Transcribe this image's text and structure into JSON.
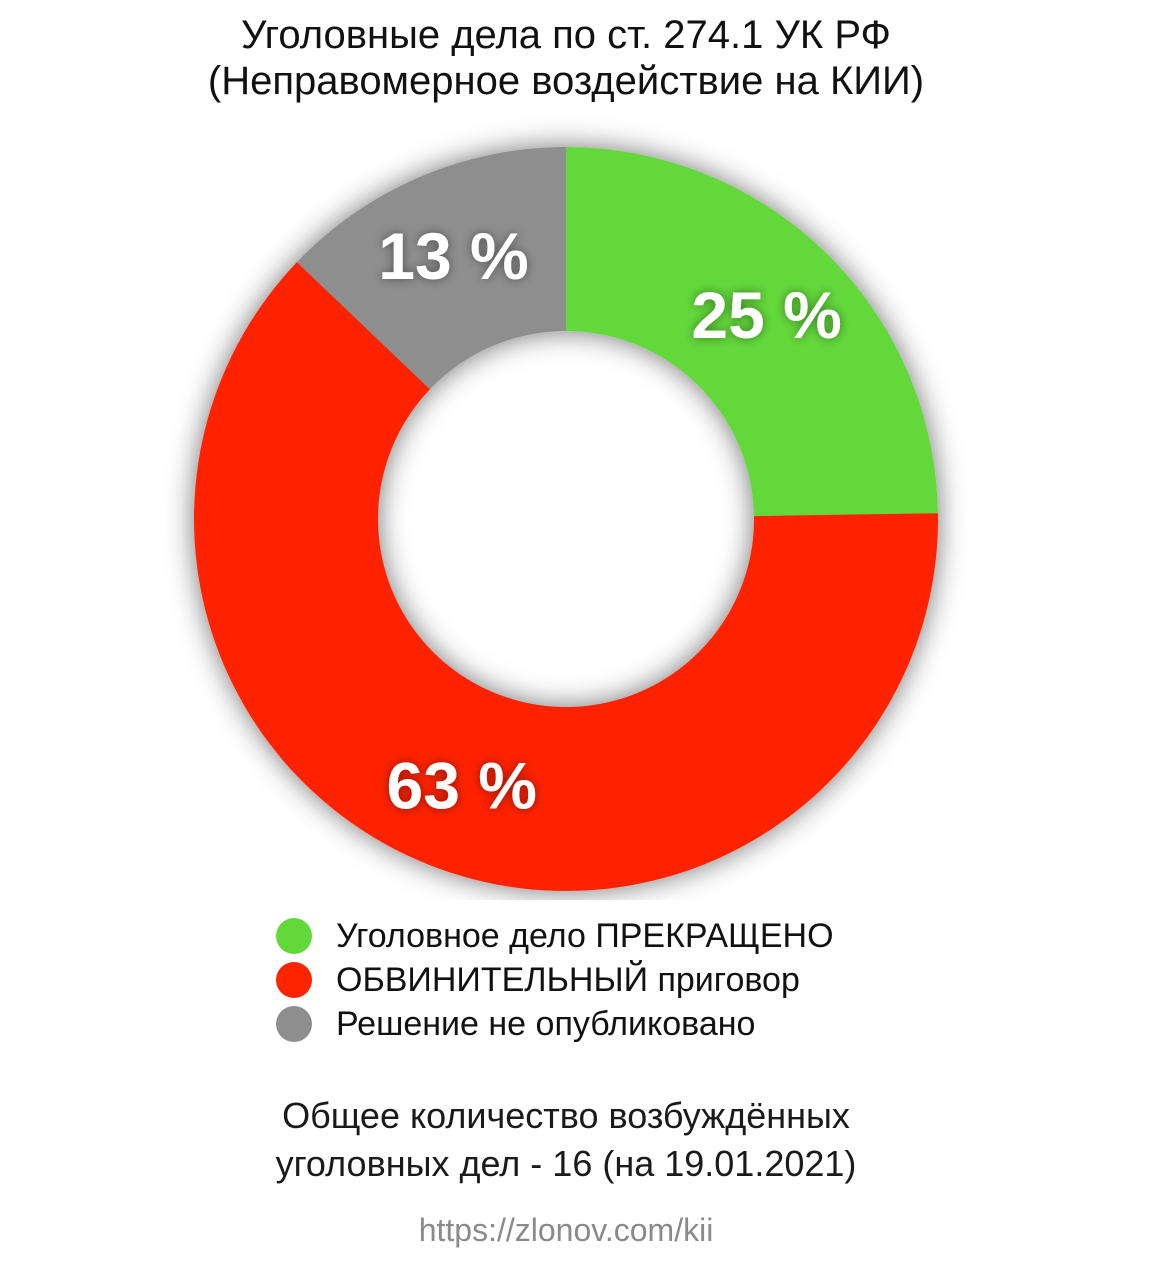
{
  "chart_data": {
    "type": "pie",
    "title": "Уголовные дела по ст. 274.1 УК РФ",
    "subtitle": "(Неправомерное воздействие на КИИ)",
    "slices": [
      {
        "name": "Уголовное дело ПРЕКРАЩЕНО",
        "value": 25,
        "label": "25 %",
        "color": "#63d83b"
      },
      {
        "name": "ОБВИНИТЕЛЬНЫЙ приговор",
        "value": 63,
        "label": "63 %",
        "color": "#ff2400"
      },
      {
        "name": "Решение не опубликовано",
        "value": 13,
        "label": "13 %",
        "color": "#8e8e8e"
      }
    ],
    "donut": true,
    "legend_position": "bottom"
  },
  "footnote": {
    "line1": "Общее количество возбуждённых",
    "line2": "уголовных дел - 16 (на 19.01.2021)"
  },
  "url": "https://zlonov.com/kii"
}
